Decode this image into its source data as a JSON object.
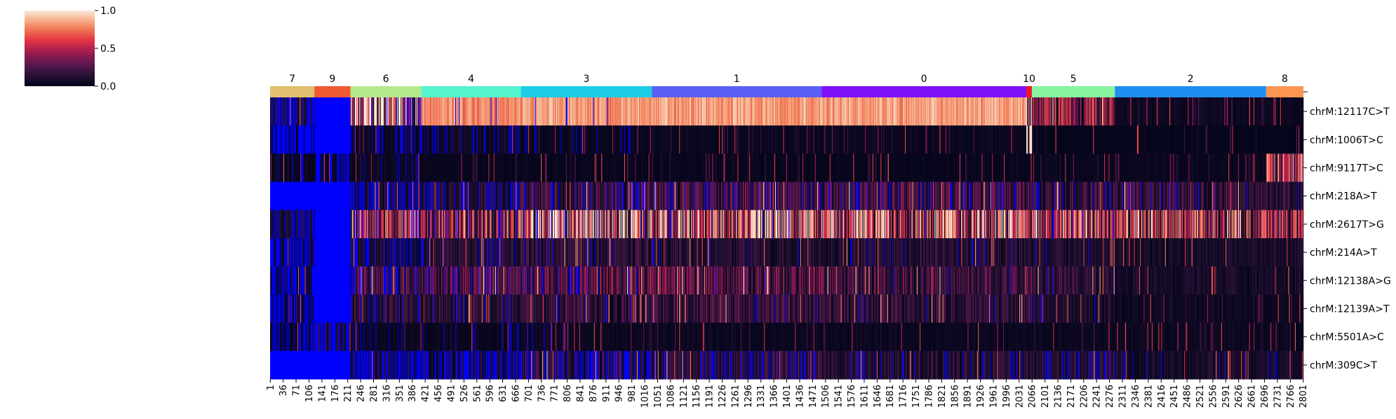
{
  "chart_data": {
    "type": "heatmap",
    "colormap": "rocket",
    "nan_color": "#0000ff",
    "title": "",
    "xlabel": "",
    "ylabel": "",
    "colorbar": {
      "min": 0.0,
      "max": 1.0,
      "ticks": [
        {
          "value": 1.0,
          "label": "1.0"
        },
        {
          "value": 0.5,
          "label": "0.5"
        },
        {
          "value": 0.0,
          "label": "0.0"
        }
      ]
    },
    "cells_total": 2801,
    "clusters": [
      {
        "label": "7",
        "start": 1,
        "end": 120,
        "color": "#e0c06e"
      },
      {
        "label": "9",
        "start": 121,
        "end": 218,
        "color": "#f05a32"
      },
      {
        "label": "6",
        "start": 219,
        "end": 410,
        "color": "#b5e88c"
      },
      {
        "label": "4",
        "start": 411,
        "end": 680,
        "color": "#55f5cf"
      },
      {
        "label": "3",
        "start": 681,
        "end": 1035,
        "color": "#1ccde6"
      },
      {
        "label": "1",
        "start": 1036,
        "end": 1495,
        "color": "#5a5ff5"
      },
      {
        "label": "0",
        "start": 1496,
        "end": 2050,
        "color": "#7f11f8"
      },
      {
        "label": "10",
        "start": 2051,
        "end": 2065,
        "color": "#f0142a"
      },
      {
        "label": "5",
        "start": 2066,
        "end": 2290,
        "color": "#86f49e"
      },
      {
        "label": "2",
        "start": 2291,
        "end": 2700,
        "color": "#1e8ef0"
      },
      {
        "label": "8",
        "start": 2701,
        "end": 2801,
        "color": "#fb9552"
      }
    ],
    "rows": [
      "chrM:12117C>T",
      "chrM:1006T>C",
      "chrM:9117T>C",
      "chrM:218A>T",
      "chrM:2617T>G",
      "chrM:214A>T",
      "chrM:12138A>G",
      "chrM:12139A>T",
      "chrM:5501A>C",
      "chrM:309C>T"
    ],
    "approx_mean_by_row_and_cluster": {
      "cluster_order": [
        "7",
        "9",
        "6",
        "4",
        "3",
        "1",
        "0",
        "10",
        "5",
        "2",
        "8"
      ],
      "values": [
        [
          0.1,
          null,
          0.7,
          0.92,
          0.95,
          0.96,
          0.96,
          0.5,
          0.35,
          0.06,
          0.05
        ],
        [
          0.02,
          null,
          0.05,
          0.06,
          0.04,
          0.05,
          0.05,
          0.85,
          0.02,
          0.02,
          0.02
        ],
        [
          0.04,
          0.05,
          0.05,
          0.03,
          0.03,
          0.03,
          0.03,
          0.03,
          0.04,
          0.04,
          0.45
        ],
        [
          null,
          null,
          0.1,
          0.12,
          0.18,
          0.2,
          0.2,
          0.2,
          0.18,
          0.18,
          0.15
        ],
        [
          0.08,
          null,
          0.45,
          0.4,
          0.6,
          0.55,
          0.55,
          0.5,
          0.5,
          0.45,
          0.4
        ],
        [
          0.05,
          null,
          0.1,
          0.12,
          0.15,
          0.12,
          0.12,
          0.12,
          0.1,
          0.08,
          0.08
        ],
        [
          0.05,
          null,
          0.2,
          0.22,
          0.25,
          0.25,
          0.2,
          0.2,
          0.15,
          0.08,
          0.08
        ],
        [
          0.04,
          null,
          0.15,
          0.15,
          0.18,
          0.18,
          0.15,
          0.15,
          0.1,
          0.06,
          0.05
        ],
        [
          0.03,
          0.1,
          0.04,
          0.05,
          0.05,
          0.05,
          0.05,
          0.05,
          0.05,
          0.05,
          0.05
        ],
        [
          null,
          null,
          0.08,
          0.1,
          0.15,
          0.15,
          0.12,
          0.12,
          0.12,
          0.08,
          0.08
        ]
      ],
      "nan_fraction_by_row_and_cluster": [
        [
          0.45,
          0.9,
          0.1,
          0.05,
          0.02,
          0.0,
          0.0,
          0.0,
          0.0,
          0.0,
          0.0
        ],
        [
          0.7,
          0.9,
          0.2,
          0.15,
          0.05,
          0.0,
          0.0,
          0.0,
          0.0,
          0.0,
          0.0
        ],
        [
          0.1,
          0.4,
          0.05,
          0.0,
          0.0,
          0.0,
          0.0,
          0.0,
          0.0,
          0.0,
          0.0
        ],
        [
          0.85,
          0.95,
          0.4,
          0.25,
          0.15,
          0.1,
          0.1,
          0.1,
          0.08,
          0.05,
          0.05
        ],
        [
          0.4,
          0.9,
          0.1,
          0.1,
          0.03,
          0.02,
          0.02,
          0.02,
          0.02,
          0.0,
          0.0
        ],
        [
          0.6,
          0.9,
          0.2,
          0.1,
          0.05,
          0.03,
          0.03,
          0.03,
          0.03,
          0.0,
          0.0
        ],
        [
          0.5,
          0.9,
          0.15,
          0.1,
          0.05,
          0.02,
          0.02,
          0.02,
          0.02,
          0.0,
          0.0
        ],
        [
          0.5,
          0.9,
          0.15,
          0.1,
          0.05,
          0.02,
          0.02,
          0.02,
          0.02,
          0.0,
          0.0
        ],
        [
          0.3,
          0.5,
          0.1,
          0.05,
          0.02,
          0.0,
          0.0,
          0.0,
          0.0,
          0.0,
          0.0
        ],
        [
          0.85,
          0.95,
          0.5,
          0.4,
          0.3,
          0.2,
          0.1,
          0.1,
          0.1,
          0.05,
          0.05
        ]
      ]
    },
    "x_tick_labels": [
      "1",
      "36",
      "71",
      "106",
      "141",
      "176",
      "211",
      "246",
      "281",
      "316",
      "351",
      "386",
      "421",
      "456",
      "491",
      "526",
      "561",
      "596",
      "631",
      "666",
      "701",
      "736",
      "771",
      "806",
      "841",
      "876",
      "911",
      "946",
      "981",
      "1016",
      "1051",
      "1086",
      "1121",
      "1156",
      "1191",
      "1226",
      "1261",
      "1296",
      "1331",
      "1366",
      "1401",
      "1436",
      "1471",
      "1506",
      "1541",
      "1576",
      "1611",
      "1646",
      "1681",
      "1716",
      "1751",
      "1786",
      "1821",
      "1856",
      "1891",
      "1926",
      "1961",
      "1996",
      "2031",
      "2066",
      "2101",
      "2136",
      "2171",
      "2206",
      "2241",
      "2276",
      "2311",
      "2346",
      "2381",
      "2416",
      "2451",
      "2486",
      "2521",
      "2556",
      "2591",
      "2626",
      "2661",
      "2696",
      "2731",
      "2766",
      "2801"
    ]
  }
}
